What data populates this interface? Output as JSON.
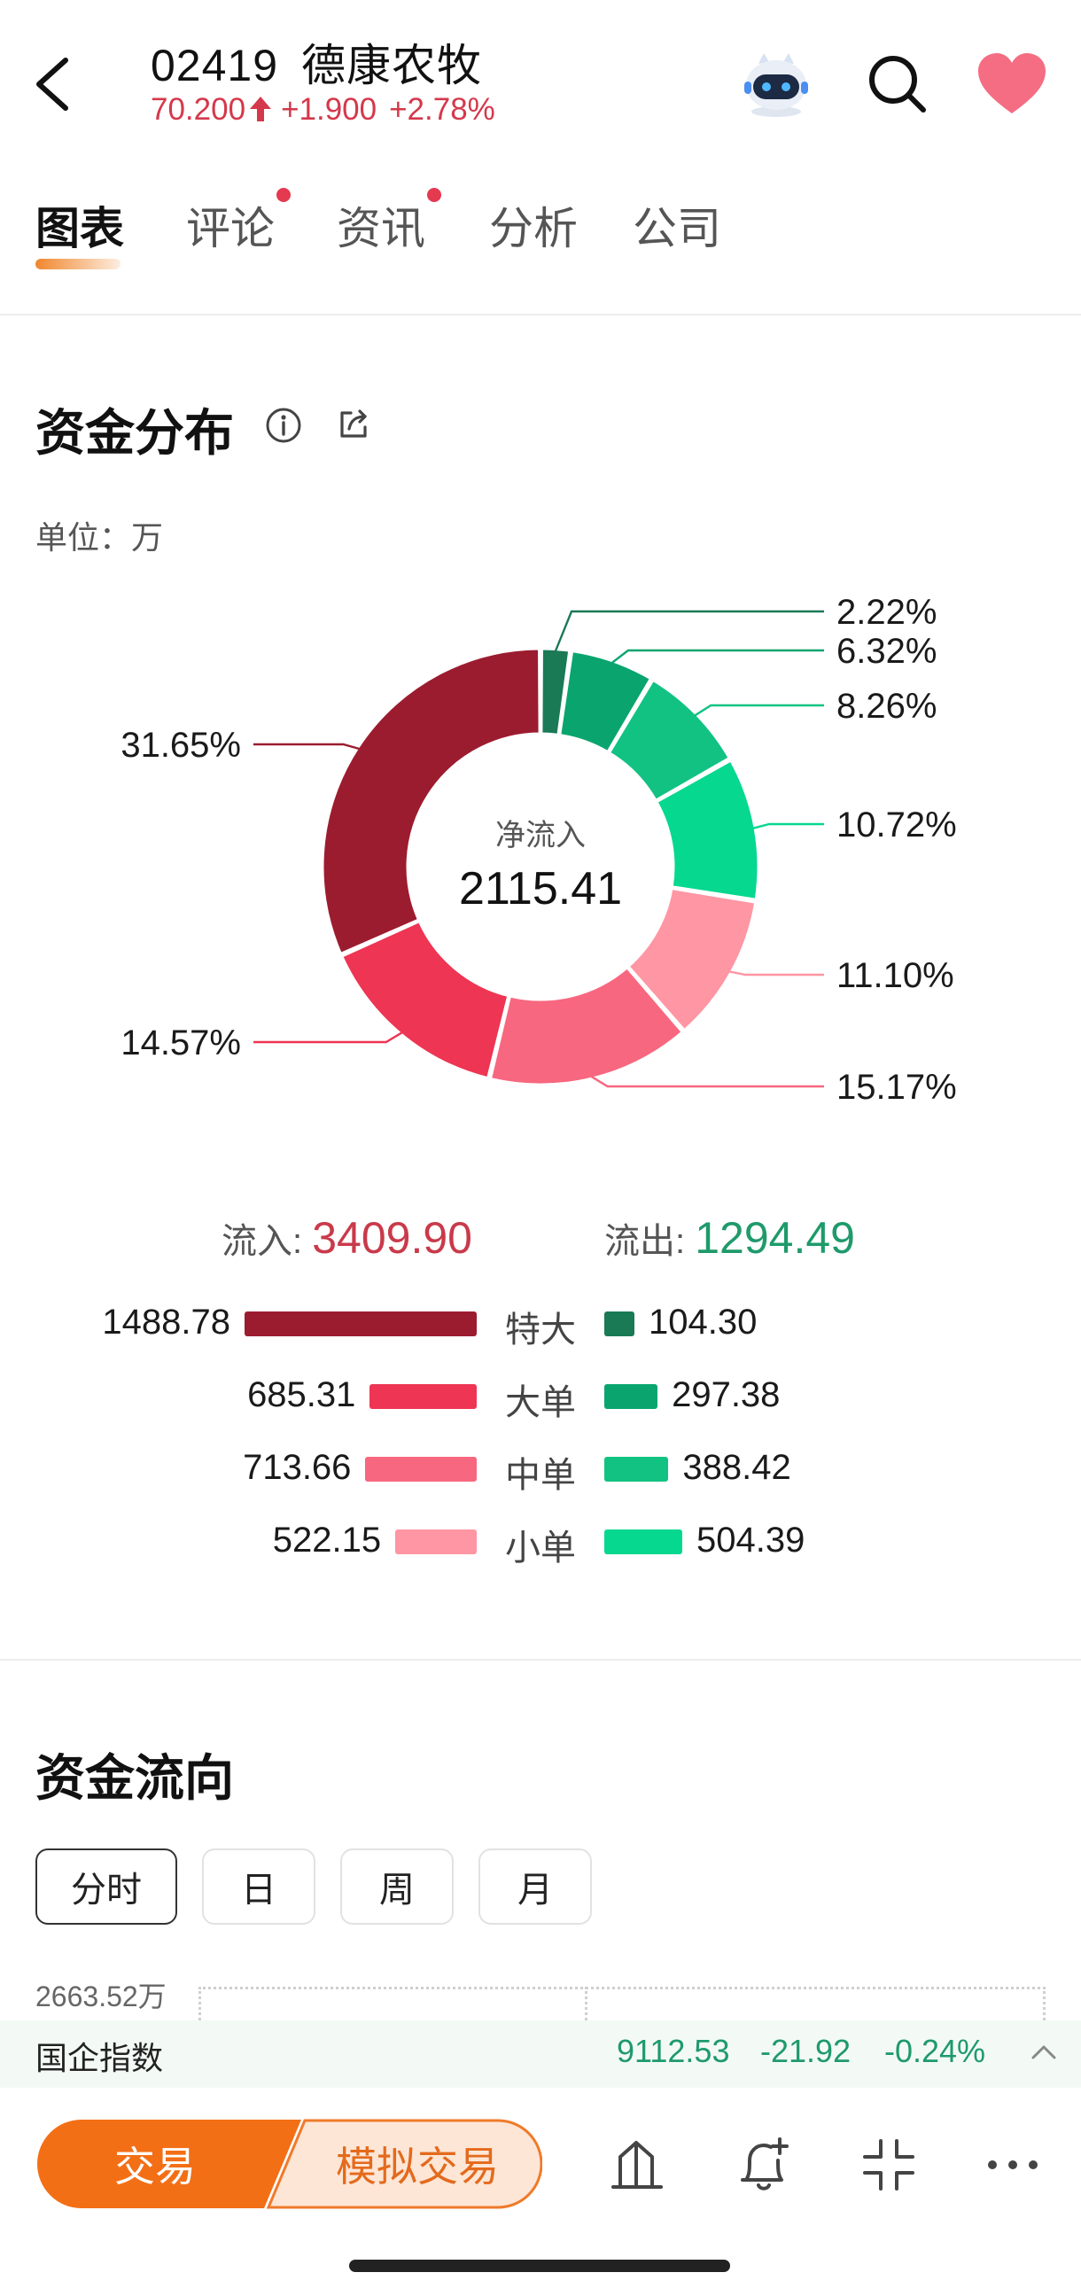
{
  "header": {
    "stock_code": "02419",
    "stock_name": "德康农牧",
    "price": "70.200",
    "change": "+1.900",
    "change_pct": "+2.78%"
  },
  "tabs": [
    {
      "label": "图表",
      "active": true,
      "dot": false
    },
    {
      "label": "评论",
      "active": false,
      "dot": true
    },
    {
      "label": "资讯",
      "active": false,
      "dot": true
    },
    {
      "label": "分析",
      "active": false,
      "dot": false
    },
    {
      "label": "公司",
      "active": false,
      "dot": false
    }
  ],
  "distribution": {
    "title": "资金分布",
    "unit": "单位：万",
    "center_label": "净流入",
    "center_value": "2115.41",
    "slices": [
      {
        "label": "2.22%",
        "value": 2.22,
        "color": "#1a7a56"
      },
      {
        "label": "6.32%",
        "value": 6.32,
        "color": "#0aa56f"
      },
      {
        "label": "8.26%",
        "value": 8.26,
        "color": "#12c282"
      },
      {
        "label": "10.72%",
        "value": 10.72,
        "color": "#06d890"
      },
      {
        "label": "11.10%",
        "value": 11.1,
        "color": "#ff96a3"
      },
      {
        "label": "15.17%",
        "value": 15.17,
        "color": "#f7677f"
      },
      {
        "label": "14.57%",
        "value": 14.57,
        "color": "#ee3553"
      },
      {
        "label": "31.65%",
        "value": 31.65,
        "color": "#9c1c2f"
      }
    ]
  },
  "flow": {
    "in_label": "流入:",
    "in_value": "3409.90",
    "out_label": "流出:",
    "out_value": "1294.49",
    "rows": [
      {
        "category": "特大",
        "in": "1488.78",
        "in_num": 1488.78,
        "out": "104.30",
        "out_num": 104.3,
        "in_color": "#9c1c2f",
        "out_color": "#1a7a56"
      },
      {
        "category": "大单",
        "in": "685.31",
        "in_num": 685.31,
        "out": "297.38",
        "out_num": 297.38,
        "in_color": "#ee3553",
        "out_color": "#0aa56f"
      },
      {
        "category": "中单",
        "in": "713.66",
        "in_num": 713.66,
        "out": "388.42",
        "out_num": 388.42,
        "in_color": "#f7677f",
        "out_color": "#12c282"
      },
      {
        "category": "小单",
        "in": "522.15",
        "in_num": 522.15,
        "out": "504.39",
        "out_num": 504.39,
        "in_color": "#ff96a3",
        "out_color": "#06d890"
      }
    ]
  },
  "direction": {
    "title": "资金流向",
    "periods": [
      {
        "label": "分时",
        "active": true
      },
      {
        "label": "日",
        "active": false
      },
      {
        "label": "周",
        "active": false
      },
      {
        "label": "月",
        "active": false
      }
    ],
    "axis_top": "2663.52万"
  },
  "ticker": {
    "name": "国企指数",
    "value": "9112.53",
    "change": "-21.92",
    "change_pct": "-0.24%"
  },
  "bottom": {
    "trade_label": "交易",
    "sim_label": "模拟交易"
  },
  "icons": [
    "back-icon",
    "robot-icon",
    "search-icon",
    "heart-icon",
    "info-icon",
    "share-icon",
    "chevron-up-icon",
    "stock-chart-icon",
    "bell-plus-icon",
    "compress-icon",
    "more-icon"
  ]
}
